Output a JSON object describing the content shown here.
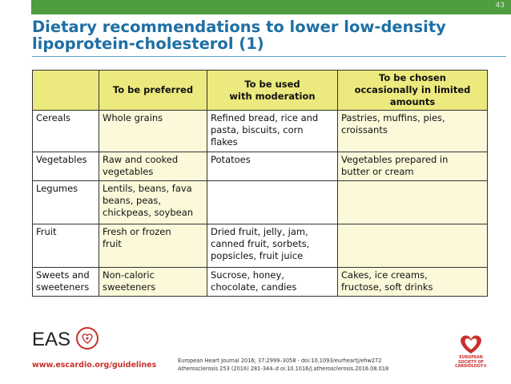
{
  "slide_number": "43",
  "title_line1": "Dietary recommendations to lower low-density",
  "title_line2": "lipoprotein-cholesterol (1)",
  "table": {
    "headers": [
      "",
      "To be preferred",
      "To be used with moderation",
      "To be chosen occasionally in limited amounts"
    ],
    "header_lines": {
      "moderation": [
        "To be used",
        "with moderation"
      ],
      "occasional": [
        "To be chosen",
        "occasionally in limited",
        "amounts"
      ]
    },
    "rows": [
      {
        "food": [
          "Cereals"
        ],
        "preferred": [
          "Whole grains"
        ],
        "moderation": [
          "Refined bread, rice and",
          "pasta, biscuits, corn",
          "flakes"
        ],
        "occasional": [
          "Pastries, muffins, pies,",
          "croissants"
        ]
      },
      {
        "food": [
          "Vegetables"
        ],
        "preferred": [
          "Raw and cooked",
          "vegetables"
        ],
        "moderation": [
          "Potatoes"
        ],
        "occasional": [
          "Vegetables prepared in",
          "butter or cream"
        ]
      },
      {
        "food": [
          "Legumes"
        ],
        "preferred": [
          "Lentils, beans, fava",
          "beans, peas,",
          "chickpeas, soybean"
        ],
        "moderation": [
          ""
        ],
        "occasional": [
          ""
        ]
      },
      {
        "food": [
          "Fruit"
        ],
        "preferred": [
          "Fresh or frozen",
          "fruit"
        ],
        "moderation": [
          "Dried fruit, jelly, jam,",
          "canned fruit, sorbets,",
          "popsicles, fruit juice"
        ],
        "occasional": [
          ""
        ]
      },
      {
        "food": [
          "Sweets and",
          "sweeteners"
        ],
        "preferred": [
          "Non-caloric",
          "sweeteners"
        ],
        "moderation": [
          "Sucrose, honey,",
          "chocolate, candies"
        ],
        "occasional": [
          "Cakes, ice creams,",
          "fructose, soft drinks"
        ]
      }
    ]
  },
  "footer": {
    "eas_logo_text": "EAS",
    "url": "www.escardio.org/guidelines",
    "citation_line1": "European Heart Journal 2016; 37:2999–3058 - doi:10.1093/eurheartj/ehw272",
    "citation_line2": "Atherosclerosis 253 (2016) 281-344–d oi:10.1016/j.atherosclerosis.2016.08.018",
    "esc_logo_lines": [
      "EUROPEAN",
      "SOCIETY OF",
      "CARDIOLOGY®"
    ]
  },
  "colors": {
    "top_bar": "#4f9d3f",
    "title": "#1f6fa3",
    "header_fill": "#ece97e",
    "cell_fill": "#fbf9da",
    "brand_red": "#c9302c"
  }
}
